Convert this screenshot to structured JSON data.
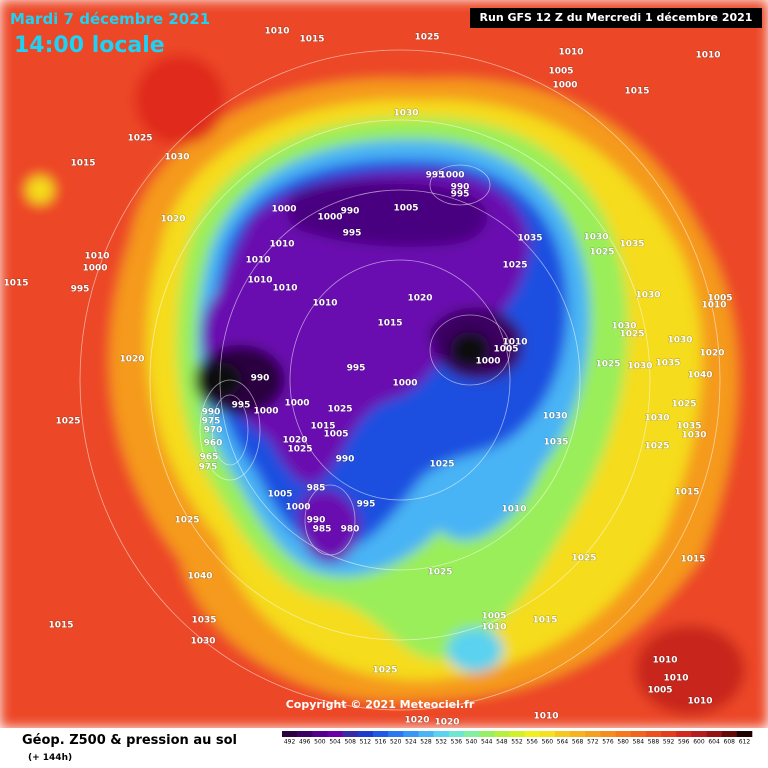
{
  "header": {
    "date": "Mardi 7 décembre 2021",
    "time": "14:00 locale",
    "run": "Run GFS 12 Z du Mercredi 1 décembre 2021"
  },
  "copyright": "Copyright © 2021 Meteociel.fr",
  "footer": {
    "title": "Géop. Z500 & pression au sol",
    "subtitle": "(+ 144h)"
  },
  "scale": {
    "values": [
      492,
      496,
      500,
      504,
      508,
      512,
      516,
      520,
      524,
      528,
      532,
      536,
      540,
      544,
      548,
      552,
      556,
      560,
      564,
      568,
      572,
      576,
      580,
      584,
      588,
      592,
      596,
      600,
      604,
      608,
      612
    ],
    "colors": [
      "#2a0040",
      "#3c0064",
      "#55008a",
      "#6c00a8",
      "#3a2aa8",
      "#1e3ccc",
      "#1e5ae6",
      "#2a78f0",
      "#3a96f5",
      "#4ab4f5",
      "#5ad2f0",
      "#6ee6d2",
      "#82f0a0",
      "#96f064",
      "#b4f03c",
      "#d2f028",
      "#f0f01e",
      "#f5e11e",
      "#f5c81e",
      "#f5b41e",
      "#f5a01e",
      "#f58c1e",
      "#f5781e",
      "#f0641e",
      "#eb501e",
      "#e63c1e",
      "#d2281e",
      "#b41e1e",
      "#961414",
      "#640a0a",
      "#1e0000"
    ]
  },
  "isobar_labels": [
    "1010",
    "1015",
    "1025",
    "1010",
    "1010",
    "1005",
    "1000",
    "1015",
    "1030",
    "1025",
    "1030",
    "1015",
    "1020",
    "1000",
    "1000",
    "990",
    "995",
    "1005",
    "995",
    "1000",
    "990",
    "995",
    "1035",
    "1025",
    "1030",
    "1035",
    "1025",
    "1010",
    "1010",
    "1010",
    "1010",
    "1010",
    "1000",
    "1015",
    "995",
    "1010",
    "1020",
    "1015",
    "1030",
    "1005",
    "1010",
    "1030",
    "1025",
    "1030",
    "1020",
    "1010",
    "1005",
    "1000",
    "1020",
    "1025",
    "1030",
    "1035",
    "1040",
    "995",
    "990",
    "995",
    "1000",
    "1000",
    "1000",
    "1025",
    "1030",
    "990",
    "975",
    "970",
    "960",
    "965",
    "975",
    "1025",
    "1015",
    "1005",
    "1020",
    "1025",
    "990",
    "1035",
    "1030",
    "1025",
    "1035",
    "1030",
    "1025",
    "1025",
    "985",
    "1005",
    "1000",
    "995",
    "990",
    "985",
    "980",
    "1010",
    "1015",
    "1025",
    "1015",
    "1025",
    "1025",
    "1040",
    "1035",
    "1030",
    "1015",
    "1005",
    "1010",
    "1015",
    "1025",
    "1010",
    "1010",
    "1005",
    "1010",
    "1010",
    "1020",
    "1020"
  ]
}
